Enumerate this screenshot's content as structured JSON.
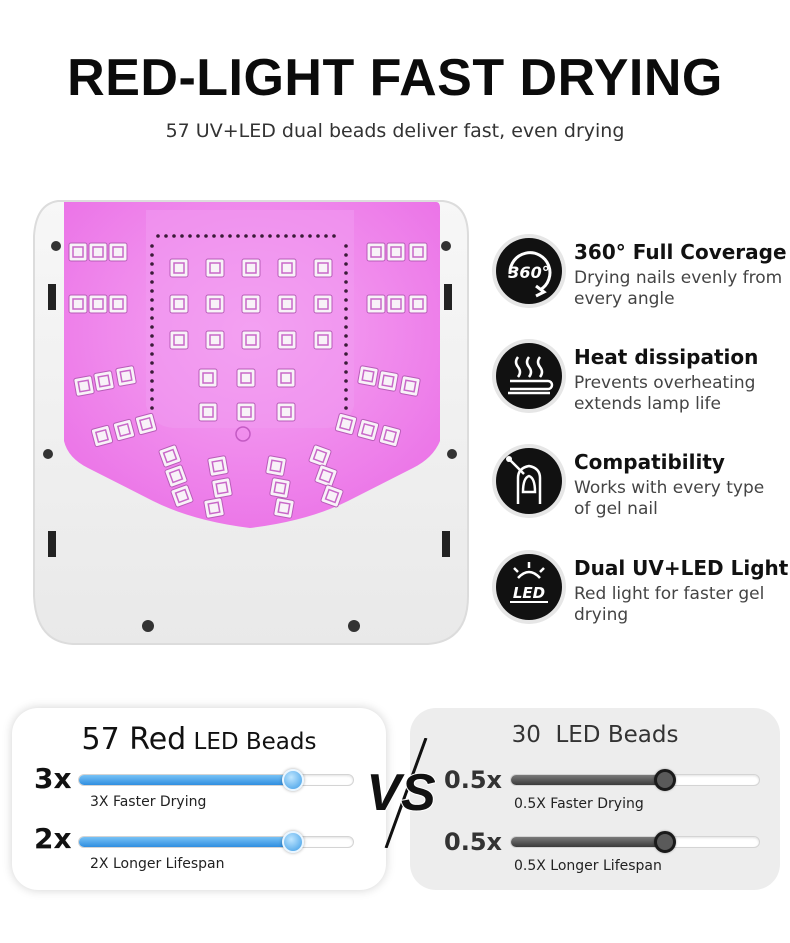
{
  "header": {
    "title": "RED-LIGHT FAST DRYING",
    "subtitle": "57 UV+LED dual beads deliver fast, even drying"
  },
  "colors": {
    "lamp_glow": "#ee82ee",
    "bead_blue": "#3c9ce6",
    "dark": "#111111"
  },
  "features": [
    {
      "icon": "360-rotation-icon",
      "badge": "360°",
      "title": "360° Full Coverage",
      "desc": "Drying nails evenly from every angle"
    },
    {
      "icon": "heat-waves-icon",
      "title": "Heat dissipation",
      "desc": "Prevents overheating extends lamp life"
    },
    {
      "icon": "nail-polish-icon",
      "title": "Compatibility",
      "desc": "Works with every type of gel nail"
    },
    {
      "icon": "led-light-icon",
      "badge": "LED",
      "title": "Dual UV+LED Light",
      "desc": "Red light for faster gel drying"
    }
  ],
  "comparison": {
    "left": {
      "title_big": "57 Red",
      "title_small": " LED Beads",
      "bars": [
        {
          "multiplier": "3x",
          "label": "3X Faster Drying",
          "level": 0.78
        },
        {
          "multiplier": "2x",
          "label": "2X Longer Lifespan",
          "level": 0.78
        }
      ]
    },
    "vs": "VS",
    "right": {
      "title": "30  LED Beads",
      "bars": [
        {
          "multiplier": "0.5x",
          "label": "0.5X Faster Drying",
          "level": 0.62
        },
        {
          "multiplier": "0.5x",
          "label": "0.5X Longer Lifespan",
          "level": 0.62
        }
      ]
    }
  }
}
